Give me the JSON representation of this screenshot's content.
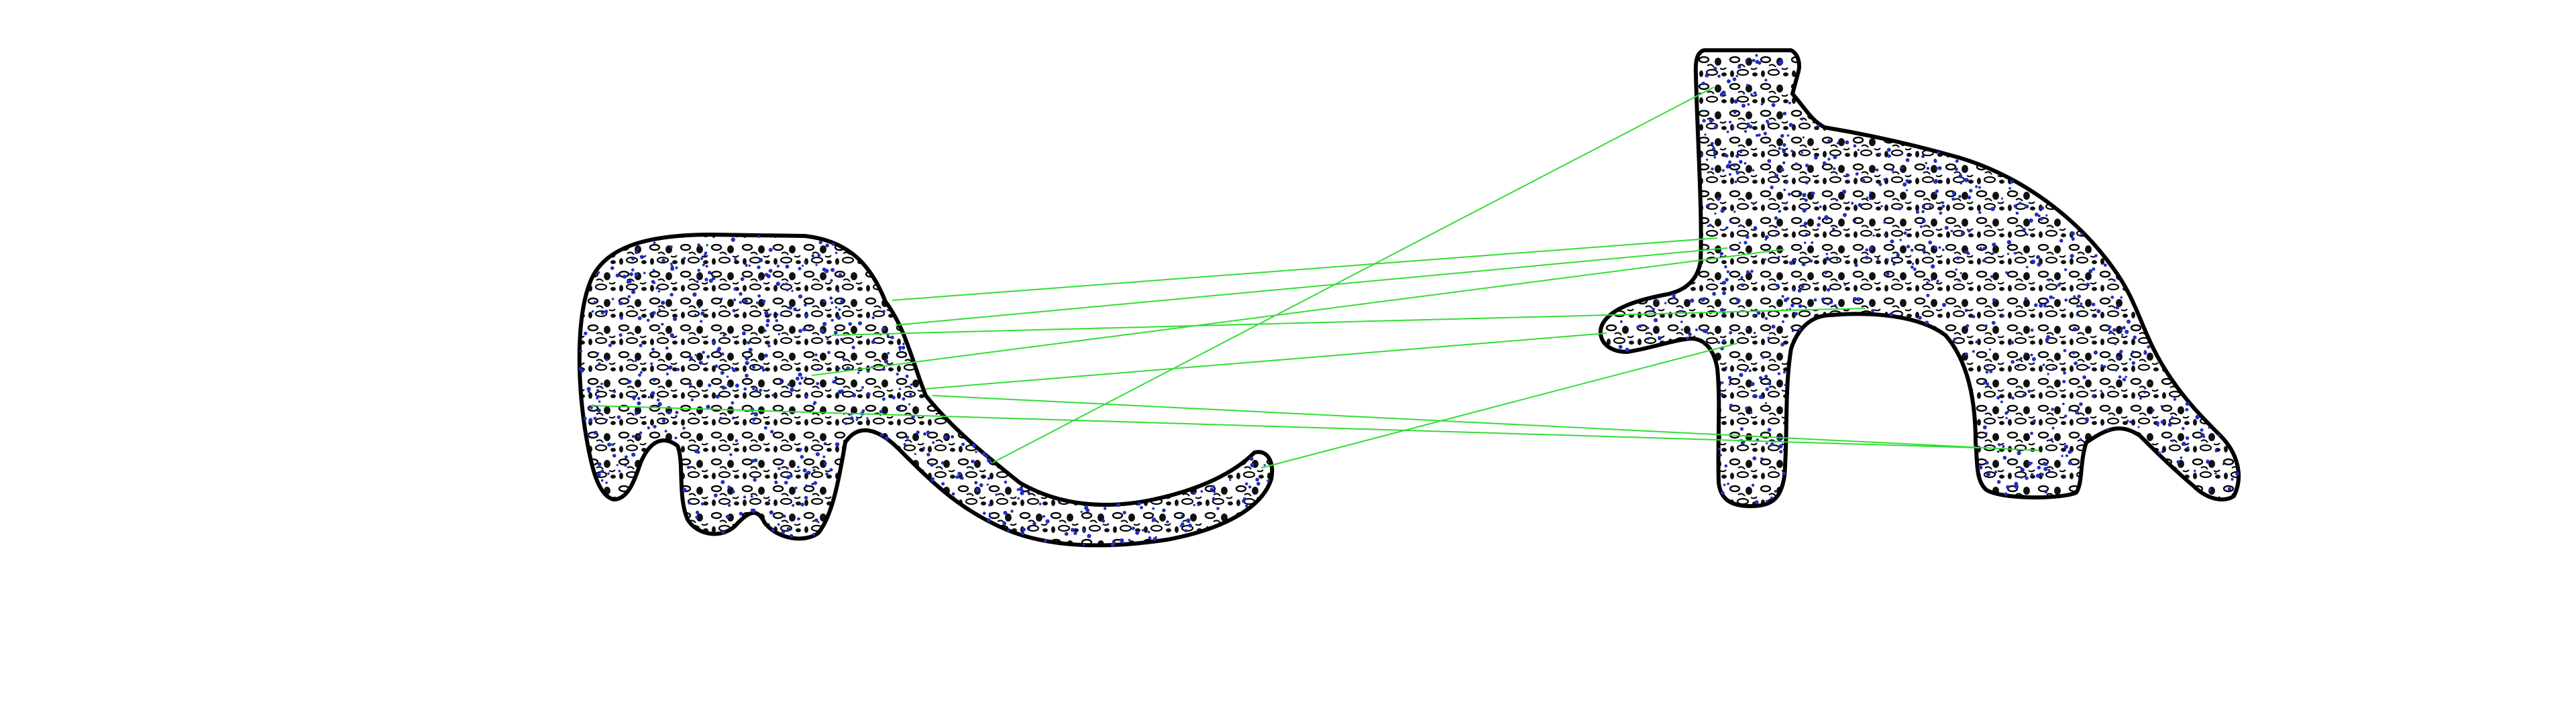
{
  "figure": {
    "background": "#ffffff",
    "outline_color": "#000000",
    "keypoint_color": "#1f2fbf",
    "match_line_color": "#33dd33",
    "left_shape": "leopard-textured-creature-curled",
    "right_shape": "leopard-textured-creature-bent",
    "match_count": 9
  }
}
